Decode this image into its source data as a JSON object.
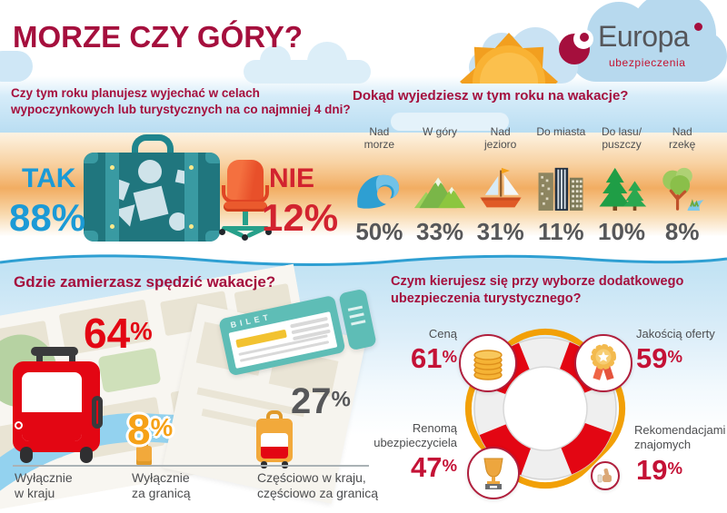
{
  "colors": {
    "crimson": "#a50f3d",
    "blue": "#1b9ad6",
    "red": "#d2232f",
    "bright_red": "#e30613",
    "orange": "#f6a117",
    "dark_gray": "#565759",
    "value_red": "#c41236",
    "suitcase_teal": "#20767e",
    "rope_orange": "#f2a007"
  },
  "header": {
    "title": "MORZE CZY GÓRY?",
    "logo": {
      "brand": "Europa",
      "subtitle": "ubezpieczenia"
    }
  },
  "q1": {
    "question": "Czy tym roku planujesz wyjechać w celach\nwypoczynkowych lub turystycznych na co najmniej 4 dni?",
    "yes": {
      "label": "TAK",
      "value": "88%"
    },
    "no": {
      "label": "NIE",
      "value": "12%"
    }
  },
  "q2": {
    "question": "Dokąd wyjedziesz w tym roku na wakacje?",
    "items": [
      {
        "label": "Nad\nmorze",
        "value": "50%",
        "icon": "wave-icon"
      },
      {
        "label": "W góry",
        "value": "33%",
        "icon": "mountains-icon"
      },
      {
        "label": "Nad\njezioro",
        "value": "31%",
        "icon": "sailboat-icon"
      },
      {
        "label": "Do miasta",
        "value": "11%",
        "icon": "city-buildings-icon"
      },
      {
        "label": "Do lasu/\npuszczy",
        "value": "10%",
        "icon": "forest-icon"
      },
      {
        "label": "Nad\nrzekę",
        "value": "8%",
        "icon": "river-tree-icon"
      }
    ]
  },
  "q3": {
    "question": "Gdzie zamierzasz spędzić wakacje?",
    "ticket_text": "BILET",
    "items": [
      {
        "label": "Wyłącznie\nw kraju",
        "value": "64%"
      },
      {
        "label": "Wyłącznie\nza granicą",
        "value": "8%"
      },
      {
        "label": "Częściowo w kraju,\nczęściowo za granicą",
        "value": "27%"
      }
    ]
  },
  "q4": {
    "question": "Czym kierujesz się przy wyborze dodatkowego\nubezpieczenia turystycznego?",
    "items": [
      {
        "label": "Ceną",
        "value": "61%",
        "icon": "coins-icon"
      },
      {
        "label": "Jakością oferty",
        "value": "59%",
        "icon": "medal-icon"
      },
      {
        "label": "Renomą\nubezpieczyciela",
        "value": "47%",
        "icon": "trophy-icon"
      },
      {
        "label": "Rekomendacjami\nznajomych",
        "value": "19%",
        "icon": "thumbs-up-icon"
      }
    ]
  },
  "chart_data": [
    {
      "type": "pie",
      "title": "Czy tym roku planujesz wyjechać w celach wypoczynkowych lub turystycznych na co najmniej 4 dni?",
      "categories": [
        "TAK",
        "NIE"
      ],
      "values": [
        88,
        12
      ],
      "unit": "%"
    },
    {
      "type": "bar",
      "title": "Dokąd wyjedziesz w tym roku na wakacje?",
      "categories": [
        "Nad morze",
        "W góry",
        "Nad jezioro",
        "Do miasta",
        "Do lasu/puszczy",
        "Nad rzekę"
      ],
      "values": [
        50,
        33,
        31,
        11,
        10,
        8
      ],
      "unit": "%"
    },
    {
      "type": "bar",
      "title": "Gdzie zamierzasz spędzić wakacje?",
      "categories": [
        "Wyłącznie w kraju",
        "Wyłącznie za granicą",
        "Częściowo w kraju, częściowo za granicą"
      ],
      "values": [
        64,
        8,
        27
      ],
      "unit": "%"
    },
    {
      "type": "bar",
      "title": "Czym kierujesz się przy wyborze dodatkowego ubezpieczenia turystycznego?",
      "categories": [
        "Ceną",
        "Jakością oferty",
        "Renomą ubezpieczyciela",
        "Rekomendacjami znajomych"
      ],
      "values": [
        61,
        59,
        47,
        19
      ],
      "unit": "%"
    }
  ]
}
